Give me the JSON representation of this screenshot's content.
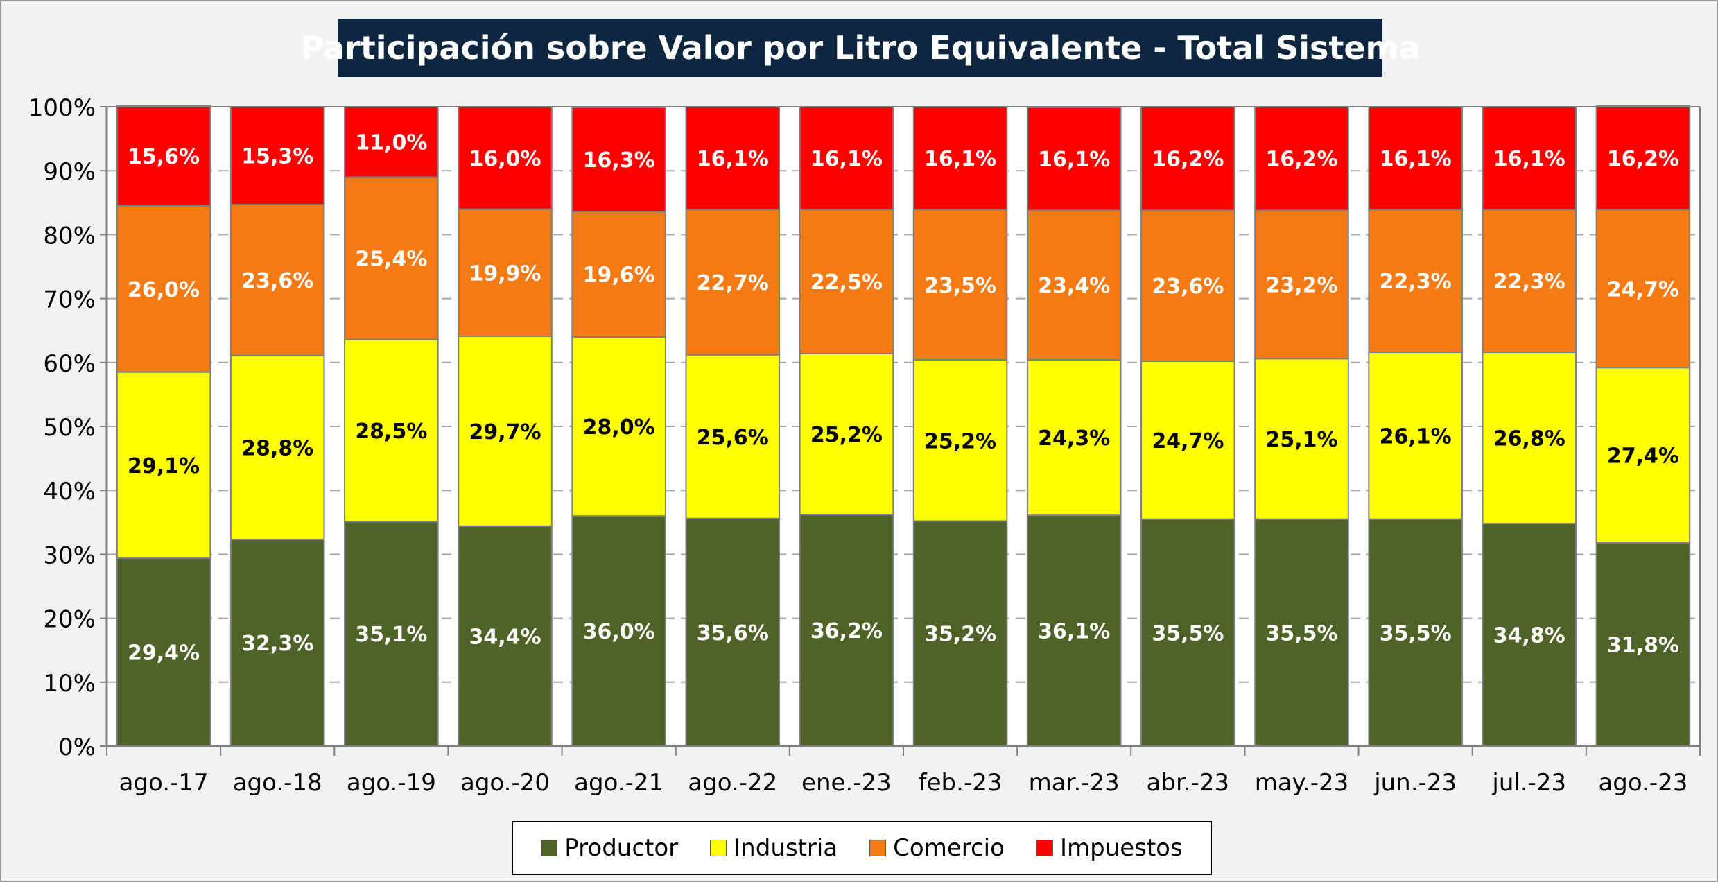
{
  "title": "Participación sobre Valor por Litro Equivalente - Total Sistema",
  "colors": {
    "Productor": "#4f6228",
    "Industria": "#ffff00",
    "Comercio": "#f47a14",
    "Impuestos": "#ff0000"
  },
  "legend": [
    {
      "name": "Productor",
      "label": "Productor"
    },
    {
      "name": "Industria",
      "label": "Industria"
    },
    {
      "name": "Comercio",
      "label": "Comercio"
    },
    {
      "name": "Impuestos",
      "label": "Impuestos"
    }
  ],
  "chart_data": {
    "type": "bar",
    "stacked": true,
    "percent": true,
    "title": "Participación sobre Valor por Litro Equivalente - Total Sistema",
    "xlabel": "",
    "ylabel": "",
    "ylim": [
      0,
      100
    ],
    "yticks": [
      "0%",
      "10%",
      "20%",
      "30%",
      "40%",
      "50%",
      "60%",
      "70%",
      "80%",
      "90%",
      "100%"
    ],
    "grid": true,
    "legend_position": "bottom",
    "categories": [
      "ago.-17",
      "ago.-18",
      "ago.-19",
      "ago.-20",
      "ago.-21",
      "ago.-22",
      "ene.-23",
      "feb.-23",
      "mar.-23",
      "abr.-23",
      "may.-23",
      "jun.-23",
      "jul.-23",
      "ago.-23"
    ],
    "series": [
      {
        "name": "Productor",
        "values": [
          29.4,
          32.3,
          35.1,
          34.4,
          36.0,
          35.6,
          36.2,
          35.2,
          36.1,
          35.5,
          35.5,
          35.5,
          34.8,
          31.8
        ],
        "labels": [
          "29,4%",
          "32,3%",
          "35,1%",
          "34,4%",
          "36,0%",
          "35,6%",
          "36,2%",
          "35,2%",
          "36,1%",
          "35,5%",
          "35,5%",
          "35,5%",
          "34,8%",
          "31,8%"
        ]
      },
      {
        "name": "Industria",
        "values": [
          29.1,
          28.8,
          28.5,
          29.7,
          28.0,
          25.6,
          25.2,
          25.2,
          24.3,
          24.7,
          25.1,
          26.1,
          26.8,
          27.4
        ],
        "labels": [
          "29,1%",
          "28,8%",
          "28,5%",
          "29,7%",
          "28,0%",
          "25,6%",
          "25,2%",
          "25,2%",
          "24,3%",
          "24,7%",
          "25,1%",
          "26,1%",
          "26,8%",
          "27,4%"
        ]
      },
      {
        "name": "Comercio",
        "values": [
          26.0,
          23.6,
          25.4,
          19.9,
          19.6,
          22.7,
          22.5,
          23.5,
          23.4,
          23.6,
          23.2,
          22.3,
          22.3,
          24.7
        ],
        "labels": [
          "26,0%",
          "23,6%",
          "25,4%",
          "19,9%",
          "19,6%",
          "22,7%",
          "22,5%",
          "23,5%",
          "23,4%",
          "23,6%",
          "23,2%",
          "22,3%",
          "22,3%",
          "24,7%"
        ]
      },
      {
        "name": "Impuestos",
        "values": [
          15.6,
          15.3,
          11.0,
          16.0,
          16.3,
          16.1,
          16.1,
          16.1,
          16.1,
          16.2,
          16.2,
          16.1,
          16.1,
          16.2
        ],
        "labels": [
          "15,6%",
          "15,3%",
          "11,0%",
          "16,0%",
          "16,3%",
          "16,1%",
          "16,1%",
          "16,1%",
          "16,1%",
          "16,2%",
          "16,2%",
          "16,1%",
          "16,1%",
          "16,2%"
        ]
      }
    ]
  }
}
